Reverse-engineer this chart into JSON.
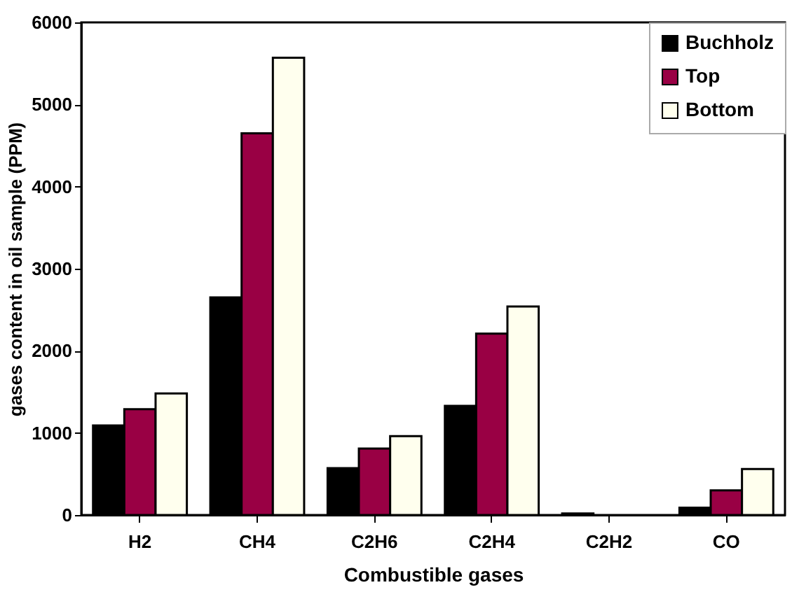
{
  "chart_data": {
    "type": "bar",
    "xlabel": "Combustible gases",
    "ylabel": "gases content in oil sample (PPM)",
    "categories": [
      "H2",
      "CH4",
      "C2H6",
      "C2H4",
      "C2H2",
      "CO"
    ],
    "series": [
      {
        "name": "Buchholz",
        "color": "#000000",
        "values": [
          1090,
          2650,
          570,
          1330,
          20,
          90
        ]
      },
      {
        "name": "Top",
        "color": "#990044",
        "values": [
          1290,
          4650,
          810,
          2210,
          0,
          300
        ]
      },
      {
        "name": "Bottom",
        "color": "#ffffee",
        "values": [
          1480,
          5570,
          960,
          2540,
          0,
          560
        ]
      }
    ],
    "ylim": [
      0,
      6000
    ],
    "yticks": [
      0,
      1000,
      2000,
      3000,
      4000,
      5000,
      6000
    ],
    "grid": false,
    "legend": "top right"
  }
}
